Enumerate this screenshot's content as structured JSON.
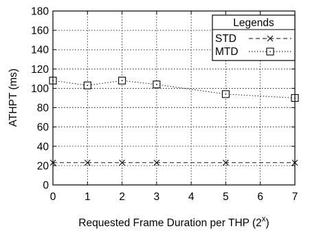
{
  "chart_data": {
    "type": "line",
    "x": [
      0,
      1,
      2,
      3,
      5,
      7
    ],
    "series": [
      {
        "name": "STD",
        "values": [
          23,
          23,
          23,
          23,
          23,
          23
        ],
        "marker": "x",
        "dash": "dashed"
      },
      {
        "name": "MTD",
        "values": [
          108,
          103,
          108,
          104,
          94,
          90
        ],
        "marker": "boxdot",
        "dash": "dotted"
      }
    ],
    "xlim": [
      0,
      7
    ],
    "ylim": [
      0,
      180
    ],
    "xticks": [
      0,
      1,
      2,
      3,
      4,
      5,
      6,
      7
    ],
    "yticks": [
      0,
      20,
      40,
      60,
      80,
      100,
      120,
      140,
      160,
      180
    ],
    "xlabel": "Requested Frame Duration per THP (2",
    "xlabel_sup": "x",
    "xlabel_suffix": ")",
    "ylabel": "ATHPT (ms)",
    "legend_title": "Legends",
    "legend_position": "top-right",
    "grid": true,
    "grid_style": "dotted"
  }
}
